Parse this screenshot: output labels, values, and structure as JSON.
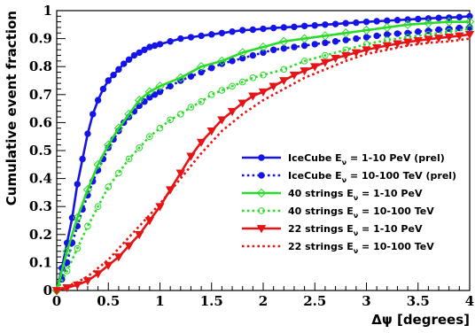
{
  "chart_data": {
    "type": "line",
    "xlabel": "Δψ [degrees]",
    "ylabel": "Cumulative event fraction",
    "xlim": [
      0,
      4
    ],
    "ylim": [
      0,
      1
    ],
    "x_ticks": [
      0,
      0.5,
      1,
      1.5,
      2,
      2.5,
      3,
      3.5,
      4
    ],
    "x_tick_labels": [
      "0",
      "0.5",
      "1",
      "1.5",
      "2",
      "2.5",
      "3",
      "3.5",
      "4"
    ],
    "y_ticks": [
      0,
      0.1,
      0.2,
      0.3,
      0.4,
      0.5,
      0.6,
      0.7,
      0.8,
      0.9,
      1
    ],
    "y_tick_labels": [
      "0",
      "0.1",
      "0.2",
      "0.3",
      "0.4",
      "0.5",
      "0.6",
      "0.7",
      "0.8",
      "0.9",
      "1"
    ],
    "grid": false,
    "legend_position": "bottom-right",
    "series": [
      {
        "name_prefix": "IceCube E",
        "name_sub": "ν",
        "name_suffix": " = 1-10 PeV (prel)",
        "color": "#1414e6",
        "line": "solid",
        "marker": "filled-circle",
        "x": [
          0.0,
          0.05,
          0.1,
          0.15,
          0.2,
          0.25,
          0.3,
          0.35,
          0.4,
          0.45,
          0.5,
          0.55,
          0.6,
          0.65,
          0.7,
          0.75,
          0.8,
          0.85,
          0.9,
          0.95,
          1.0,
          1.1,
          1.2,
          1.3,
          1.4,
          1.5,
          1.6,
          1.7,
          1.8,
          1.9,
          2.0,
          2.1,
          2.2,
          2.3,
          2.4,
          2.5,
          2.6,
          2.7,
          2.8,
          2.9,
          3.0,
          3.1,
          3.2,
          3.3,
          3.4,
          3.5,
          3.6,
          3.7,
          3.8,
          3.9,
          4.0
        ],
        "y": [
          0.0,
          0.08,
          0.17,
          0.26,
          0.38,
          0.47,
          0.56,
          0.63,
          0.68,
          0.72,
          0.75,
          0.77,
          0.79,
          0.81,
          0.825,
          0.84,
          0.85,
          0.86,
          0.87,
          0.875,
          0.88,
          0.89,
          0.9,
          0.905,
          0.91,
          0.915,
          0.92,
          0.925,
          0.93,
          0.932,
          0.935,
          0.938,
          0.94,
          0.942,
          0.945,
          0.947,
          0.95,
          0.952,
          0.955,
          0.957,
          0.96,
          0.962,
          0.964,
          0.966,
          0.968,
          0.97,
          0.972,
          0.974,
          0.975,
          0.977,
          0.98
        ]
      },
      {
        "name_prefix": "IceCube E",
        "name_sub": "ν",
        "name_suffix": " = 10-100 TeV (prel)",
        "color": "#1414e6",
        "line": "dotted",
        "marker": "filled-circle",
        "x": [
          0.0,
          0.05,
          0.1,
          0.15,
          0.2,
          0.25,
          0.3,
          0.35,
          0.4,
          0.45,
          0.5,
          0.55,
          0.6,
          0.65,
          0.7,
          0.75,
          0.8,
          0.85,
          0.9,
          0.95,
          1.0,
          1.1,
          1.2,
          1.3,
          1.4,
          1.5,
          1.6,
          1.7,
          1.8,
          1.9,
          2.0,
          2.1,
          2.2,
          2.3,
          2.4,
          2.5,
          2.6,
          2.7,
          2.8,
          2.9,
          3.0,
          3.1,
          3.2,
          3.3,
          3.4,
          3.5,
          3.6,
          3.7,
          3.8,
          3.9,
          4.0
        ],
        "y": [
          0.0,
          0.04,
          0.1,
          0.17,
          0.23,
          0.29,
          0.34,
          0.39,
          0.43,
          0.47,
          0.51,
          0.54,
          0.57,
          0.6,
          0.62,
          0.64,
          0.66,
          0.675,
          0.69,
          0.7,
          0.71,
          0.73,
          0.75,
          0.765,
          0.78,
          0.795,
          0.81,
          0.82,
          0.83,
          0.84,
          0.85,
          0.86,
          0.865,
          0.87,
          0.875,
          0.88,
          0.885,
          0.89,
          0.895,
          0.9,
          0.905,
          0.91,
          0.915,
          0.918,
          0.92,
          0.925,
          0.928,
          0.932,
          0.935,
          0.938,
          0.94
        ]
      },
      {
        "name_prefix": "40 strings E",
        "name_sub": "ν",
        "name_suffix": " = 1-10 PeV",
        "color": "#28dc28",
        "line": "solid",
        "marker": "open-diamond",
        "x": [
          0.0,
          0.1,
          0.2,
          0.3,
          0.4,
          0.5,
          0.6,
          0.7,
          0.8,
          0.9,
          1.0,
          1.2,
          1.4,
          1.6,
          1.8,
          2.0,
          2.2,
          2.4,
          2.6,
          2.8,
          3.0,
          3.2,
          3.4,
          3.6,
          3.8,
          4.0
        ],
        "y": [
          0.0,
          0.14,
          0.26,
          0.36,
          0.45,
          0.52,
          0.58,
          0.63,
          0.68,
          0.71,
          0.73,
          0.76,
          0.8,
          0.82,
          0.85,
          0.87,
          0.89,
          0.9,
          0.91,
          0.92,
          0.93,
          0.94,
          0.95,
          0.955,
          0.96,
          0.96
        ]
      },
      {
        "name_prefix": "40 strings E",
        "name_sub": "ν",
        "name_suffix": " = 10-100 TeV",
        "color": "#28dc28",
        "line": "dotted",
        "marker": "open-circle",
        "x": [
          0.0,
          0.1,
          0.2,
          0.3,
          0.4,
          0.5,
          0.6,
          0.7,
          0.8,
          0.9,
          1.0,
          1.1,
          1.2,
          1.3,
          1.4,
          1.5,
          1.6,
          1.7,
          1.8,
          1.9,
          2.0,
          2.2,
          2.4,
          2.6,
          2.8,
          3.0,
          3.2,
          3.4,
          3.6,
          3.8,
          4.0
        ],
        "y": [
          0.0,
          0.07,
          0.15,
          0.23,
          0.3,
          0.37,
          0.42,
          0.47,
          0.51,
          0.55,
          0.58,
          0.61,
          0.63,
          0.655,
          0.675,
          0.7,
          0.715,
          0.73,
          0.745,
          0.76,
          0.77,
          0.79,
          0.82,
          0.84,
          0.86,
          0.88,
          0.895,
          0.905,
          0.915,
          0.925,
          0.935
        ]
      },
      {
        "name_prefix": "22 strings E",
        "name_sub": "ν",
        "name_suffix": " = 1-10 PeV",
        "color": "#e61414",
        "line": "solid",
        "marker": "filled-triangle-down",
        "x": [
          0.0,
          0.1,
          0.2,
          0.3,
          0.4,
          0.5,
          0.6,
          0.7,
          0.8,
          0.9,
          1.0,
          1.1,
          1.2,
          1.3,
          1.4,
          1.5,
          1.6,
          1.7,
          1.8,
          1.9,
          2.0,
          2.1,
          2.2,
          2.3,
          2.4,
          2.5,
          2.6,
          2.7,
          2.8,
          2.9,
          3.0,
          3.1,
          3.2,
          3.3,
          3.4,
          3.5,
          3.6,
          3.7,
          3.8,
          3.9,
          4.0
        ],
        "y": [
          0.0,
          0.01,
          0.02,
          0.035,
          0.06,
          0.09,
          0.12,
          0.16,
          0.2,
          0.25,
          0.3,
          0.36,
          0.42,
          0.48,
          0.53,
          0.57,
          0.61,
          0.64,
          0.67,
          0.695,
          0.71,
          0.73,
          0.75,
          0.77,
          0.785,
          0.8,
          0.815,
          0.83,
          0.84,
          0.85,
          0.86,
          0.868,
          0.875,
          0.882,
          0.888,
          0.893,
          0.898,
          0.902,
          0.906,
          0.91,
          0.915
        ]
      },
      {
        "name_prefix": "22 strings E",
        "name_sub": "ν",
        "name_suffix": " = 10-100 TeV",
        "color": "#e61414",
        "line": "dotted",
        "marker": "none",
        "x": [
          0.0,
          0.1,
          0.2,
          0.3,
          0.4,
          0.5,
          0.6,
          0.7,
          0.8,
          0.9,
          1.0,
          1.2,
          1.4,
          1.6,
          1.8,
          2.0,
          2.2,
          2.4,
          2.6,
          2.8,
          3.0,
          3.2,
          3.4,
          3.6,
          3.8,
          4.0
        ],
        "y": [
          0.0,
          0.015,
          0.03,
          0.05,
          0.08,
          0.11,
          0.15,
          0.19,
          0.23,
          0.27,
          0.31,
          0.4,
          0.49,
          0.57,
          0.63,
          0.68,
          0.72,
          0.76,
          0.79,
          0.82,
          0.845,
          0.86,
          0.875,
          0.885,
          0.89,
          0.9
        ]
      }
    ]
  }
}
